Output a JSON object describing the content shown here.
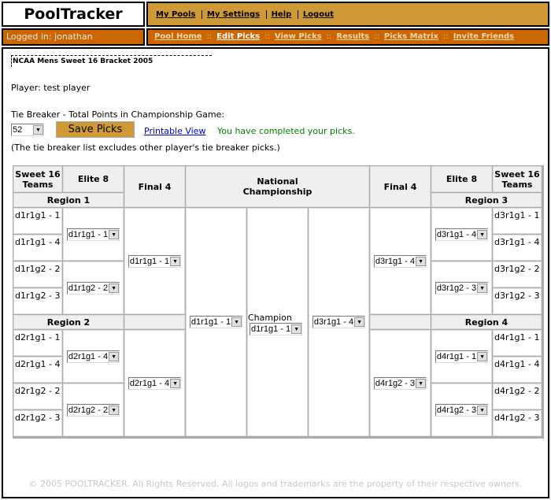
{
  "header": {
    "logo": "PoolTracker",
    "top_nav": [
      "My Pools",
      "My Settings",
      "Help",
      "Logout"
    ],
    "logged_in": "Logged in: jonathan",
    "sub_nav": [
      "Pool Home",
      "Edit Picks",
      "View Picks",
      "Results",
      "Picks Matrix",
      "Invite Friends"
    ],
    "sub_nav_sep": "::",
    "current": "Edit Picks"
  },
  "main": {
    "bracket_title": "NCAA Mens Sweet 16 Bracket 2005",
    "player": "Player: test player",
    "tiebreaker_label": "Tie Breaker - Total Points in Championship Game:",
    "tiebreaker_value": "52",
    "save_label": "Save Picks",
    "printable_label": "Printable View",
    "status": "You have completed your picks.",
    "note": "(The tie breaker list excludes other player's tie breaker picks.)"
  },
  "bracket": {
    "headers": {
      "sweet16": "Sweet 16 Teams",
      "elite8": "Elite 8",
      "final4": "Final 4",
      "national": "National Championship",
      "champion": "Champion"
    },
    "regions": [
      "Region 1",
      "Region 2",
      "Region 3",
      "Region 4"
    ],
    "teams_left": [
      "d1r1g1 - 1",
      "d1r1g1 - 4",
      "d1r1g2 - 2",
      "d1r1g2 - 3",
      "d2r1g1 - 1",
      "d2r1g1 - 4",
      "d2r1g2 - 2",
      "d2r1g2 - 3"
    ],
    "teams_right": [
      "d3r1g1 - 1",
      "d3r1g1 - 4",
      "d3r1g2 - 2",
      "d3r1g2 - 3",
      "d4r1g1 - 1",
      "d4r1g1 - 4",
      "d4r1g2 - 2",
      "d4r1g2 - 3"
    ],
    "elite8_left": [
      "d1r1g1 - 1",
      "d1r1g2 - 2",
      "d2r1g1 - 4",
      "d2r1g2 - 2"
    ],
    "elite8_right": [
      "d3r1g1 - 4",
      "d3r1g2 - 3",
      "d4r1g1 - 1",
      "d4r1g2 - 3"
    ],
    "final4_left": [
      "d1r1g1 - 1",
      "d2r1g1 - 4"
    ],
    "final4_right": [
      "d3r1g1 - 4",
      "d4r1g2 - 3"
    ],
    "finalist_left": "d1r1g1 - 1",
    "champion": "d1r1g1 - 1",
    "finalist_right": "d3r1g1 - 4"
  },
  "footer": "© 2005 POOLTRACKER. All Rights Reserved. All logos and trademarks are the property of their respective owners.",
  "colors": {
    "gold": "#cf9a35",
    "orange": "#cc6600",
    "status_green": "#008000",
    "link_blue": "#0000cc"
  }
}
